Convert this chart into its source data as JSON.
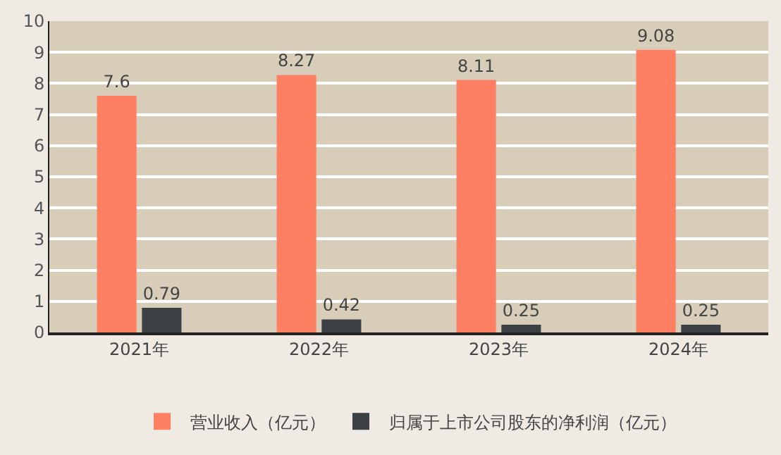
{
  "chart_data": {
    "type": "bar",
    "categories": [
      "2021年",
      "2022年",
      "2023年",
      "2024年"
    ],
    "series": [
      {
        "name": "营业收入（亿元）",
        "color": "#ff7f63",
        "values": [
          7.6,
          8.27,
          8.11,
          9.08
        ]
      },
      {
        "name": "归属于上市公司股东的净利润（亿元）",
        "color": "#3b4045",
        "values": [
          0.79,
          0.42,
          0.25,
          0.25
        ]
      }
    ],
    "ylim": [
      0,
      10
    ],
    "yticks": [
      0,
      1,
      2,
      3,
      4,
      5,
      6,
      7,
      8,
      9,
      10
    ],
    "grid": "y",
    "legend": "bottom",
    "data_labels": true
  }
}
